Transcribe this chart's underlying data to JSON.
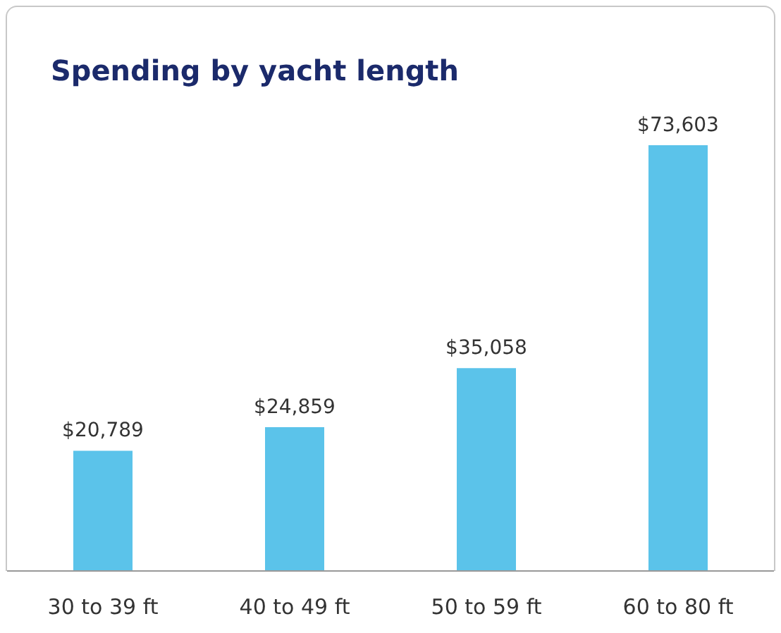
{
  "chart_data": {
    "type": "bar",
    "title": "Spending by yacht length",
    "categories": [
      "30 to 39 ft",
      "40 to 49 ft",
      "50 to 59 ft",
      "60 to 80 ft"
    ],
    "values": [
      20789,
      24859,
      35058,
      73603
    ],
    "value_labels": [
      "$20,789",
      "$24,859",
      "$35,058",
      "$73,603"
    ],
    "color": "#5bc3ea",
    "grid": false,
    "legend": false
  }
}
